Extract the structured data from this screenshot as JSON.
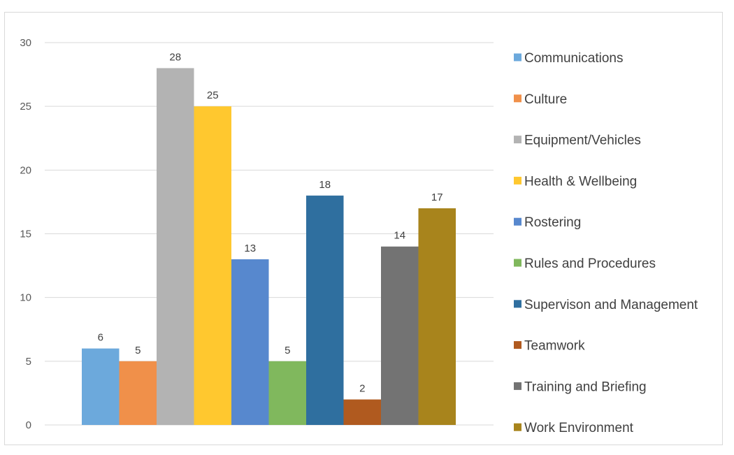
{
  "chart_data": {
    "type": "bar",
    "title": "",
    "xlabel": "",
    "ylabel": "",
    "ylim": [
      0,
      30
    ],
    "yticks": [
      0,
      5,
      10,
      15,
      20,
      25,
      30
    ],
    "grid": true,
    "legend_position": "right",
    "categories": [
      "Communications",
      "Culture",
      "Equipment/Vehicles",
      "Health & Wellbeing",
      "Rostering",
      "Rules and Procedures",
      "Supervison and Management",
      "Teamwork",
      "Training and Briefing",
      "Work Environment"
    ],
    "values": [
      6,
      5,
      28,
      25,
      13,
      5,
      18,
      2,
      14,
      17
    ],
    "colors": [
      "#6CA9DC",
      "#F0904A",
      "#B3B3B3",
      "#FFC82F",
      "#5788CE",
      "#80B85D",
      "#2F6F9F",
      "#B05A1F",
      "#737373",
      "#A8841C"
    ]
  }
}
